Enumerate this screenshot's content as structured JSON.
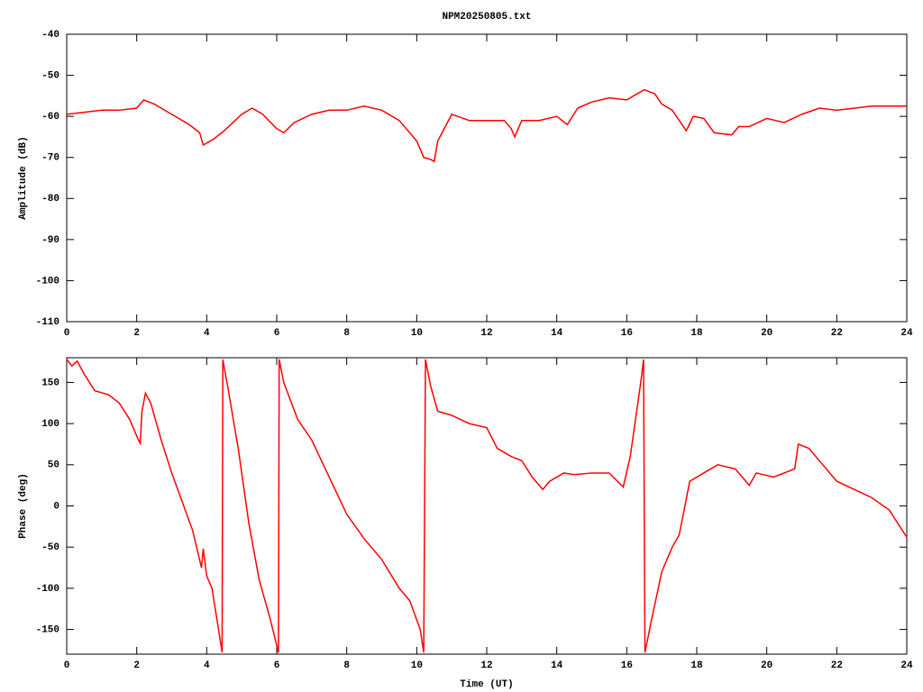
{
  "chart_data": [
    {
      "type": "line",
      "title": "NPM20250805.txt",
      "ylabel": "Amplitude (dB)",
      "xlim": [
        0,
        24
      ],
      "xticks": [
        0,
        2,
        4,
        6,
        8,
        10,
        12,
        14,
        16,
        18,
        20,
        22,
        24
      ],
      "ylim": [
        -110,
        -40
      ],
      "yticks": [
        -110,
        -100,
        -90,
        -80,
        -70,
        -60,
        -50,
        -40
      ],
      "color": "#ff0000",
      "x": [
        0,
        0.5,
        1,
        1.5,
        2,
        2.2,
        2.5,
        3,
        3.5,
        3.8,
        3.9,
        4.2,
        4.5,
        5,
        5.3,
        5.6,
        6,
        6.2,
        6.5,
        7,
        7.5,
        8,
        8.5,
        9,
        9.5,
        10,
        10.2,
        10.4,
        10.5,
        10.6,
        11,
        11.5,
        12,
        12.5,
        12.7,
        12.8,
        13,
        13.5,
        14,
        14.3,
        14.6,
        15,
        15.5,
        16,
        16.3,
        16.5,
        16.8,
        17,
        17.3,
        17.5,
        17.7,
        17.9,
        18.2,
        18.5,
        19,
        19.2,
        19.5,
        20,
        20.5,
        21,
        21.5,
        22,
        23,
        24
      ],
      "values": [
        -59.5,
        -59,
        -58.5,
        -58.5,
        -58,
        -56,
        -57,
        -59.5,
        -62,
        -64,
        -67,
        -65.5,
        -63.5,
        -59.5,
        -58,
        -59.5,
        -63,
        -64,
        -61.5,
        -59.5,
        -58.5,
        -58.5,
        -57.5,
        -58.5,
        -61,
        -66,
        -70,
        -70.5,
        -71,
        -66,
        -59.5,
        -61,
        -61,
        -61,
        -63,
        -65,
        -61,
        -61,
        -60,
        -62,
        -58,
        -56.5,
        -55.5,
        -56,
        -54.5,
        -53.5,
        -54.5,
        -57,
        -58.5,
        -61,
        -63.5,
        -60,
        -60.5,
        -64,
        -64.5,
        -62.5,
        -62.5,
        -60.5,
        -61.5,
        -59.5,
        -58,
        -58.5,
        -57.5,
        -57.5
      ]
    },
    {
      "type": "line",
      "ylabel": "Phase (deg)",
      "xlabel": "Time (UT)",
      "xlim": [
        0,
        24
      ],
      "xticks": [
        0,
        2,
        4,
        6,
        8,
        10,
        12,
        14,
        16,
        18,
        20,
        22,
        24
      ],
      "ylim": [
        -180,
        180
      ],
      "yticks": [
        -150,
        -100,
        -50,
        0,
        50,
        100,
        150
      ],
      "color": "#ff0000",
      "x": [
        0,
        0.15,
        0.3,
        0.5,
        0.8,
        1.2,
        1.5,
        1.8,
        2.05,
        2.1,
        2.15,
        2.25,
        2.4,
        2.7,
        3,
        3.3,
        3.6,
        3.85,
        3.9,
        4,
        4.15,
        4.3,
        4.44,
        4.46,
        4.6,
        4.9,
        5.2,
        5.5,
        5.8,
        6.05,
        6.07,
        6.2,
        6.6,
        7,
        7.5,
        8,
        8.5,
        9,
        9.5,
        9.8,
        10.1,
        10.2,
        10.25,
        10.4,
        10.6,
        11,
        11.5,
        12,
        12.3,
        12.7,
        13,
        13.3,
        13.6,
        13.8,
        14.2,
        14.5,
        15,
        15.5,
        15.9,
        16.1,
        16.4,
        16.48,
        16.52,
        16.7,
        17,
        17.3,
        17.5,
        17.8,
        18.2,
        18.6,
        19.1,
        19.5,
        19.7,
        20.2,
        20.8,
        20.9,
        21.2,
        21.6,
        22,
        22.5,
        23,
        23.5,
        24
      ],
      "values": [
        178,
        170,
        176,
        160,
        140,
        135,
        125,
        105,
        80,
        76,
        115,
        137,
        125,
        80,
        40,
        5,
        -30,
        -75,
        -52,
        -85,
        -100,
        -140,
        -178,
        178,
        145,
        70,
        -20,
        -90,
        -135,
        -178,
        178,
        150,
        105,
        80,
        35,
        -10,
        -40,
        -65,
        -100,
        -115,
        -150,
        -178,
        178,
        145,
        115,
        110,
        100,
        95,
        70,
        60,
        55,
        35,
        20,
        30,
        40,
        38,
        40,
        40,
        23,
        60,
        150,
        178,
        -178,
        -140,
        -80,
        -50,
        -35,
        30,
        40,
        50,
        45,
        25,
        40,
        35,
        45,
        75,
        70,
        50,
        30,
        20,
        10,
        -5,
        -38
      ]
    }
  ]
}
